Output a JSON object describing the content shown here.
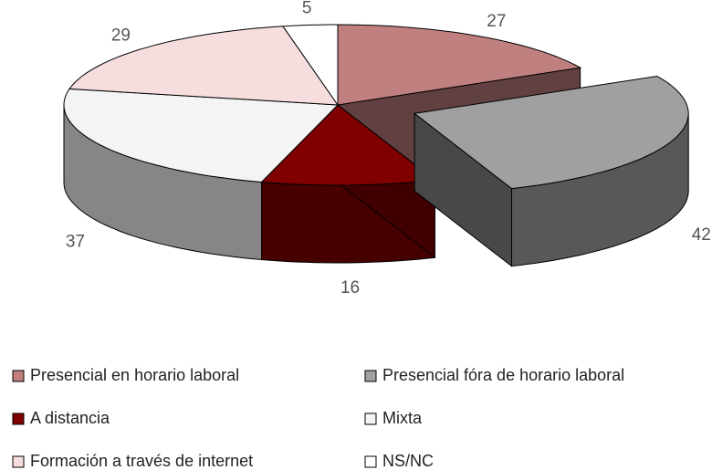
{
  "chart_data": {
    "type": "pie3d",
    "categories": [
      "Presencial en horario laboral",
      "Presencial fóra de horario laboral",
      "A distancia",
      "Mixta",
      "Formación a través de internet",
      "NS/NC"
    ],
    "values": [
      27,
      42,
      16,
      37,
      29,
      5
    ],
    "colors": [
      "#c08080",
      "#a0a0a0",
      "#800000",
      "#f4f4f4",
      "#f6dede",
      "#ffffff"
    ],
    "exploded": 1,
    "legend": "bottom"
  }
}
